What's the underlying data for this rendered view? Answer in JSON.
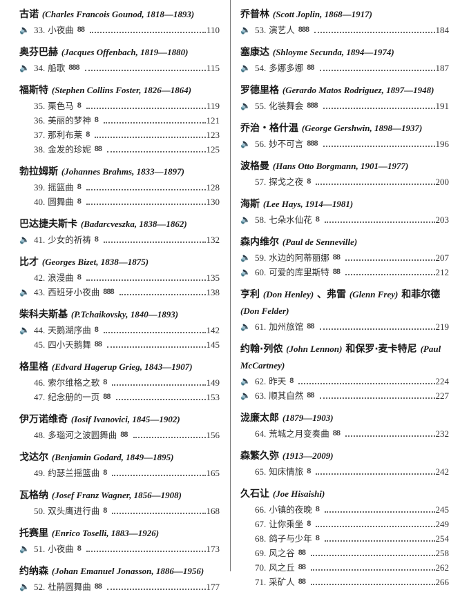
{
  "left": [
    {
      "heading_cn": "古诺",
      "heading_en": "(Charles Francois Gounod, 1818—1893)",
      "items": [
        {
          "icon": true,
          "num": "33.",
          "title": "小夜曲",
          "difficulty": 2,
          "page": "110"
        }
      ]
    },
    {
      "heading_cn": "奥芬巴赫",
      "heading_en": "(Jacques Offenbach, 1819—1880)",
      "items": [
        {
          "icon": true,
          "num": "34.",
          "title": "船歌",
          "difficulty": 3,
          "page": "115"
        }
      ]
    },
    {
      "heading_cn": "福斯特",
      "heading_en": "(Stephen Collins Foster, 1826—1864)",
      "items": [
        {
          "icon": false,
          "num": "35.",
          "title": "栗色马",
          "difficulty": 1,
          "page": "119"
        },
        {
          "icon": false,
          "num": "36.",
          "title": "美丽的梦神",
          "difficulty": 1,
          "page": "121"
        },
        {
          "icon": false,
          "num": "37.",
          "title": "那利布莱",
          "difficulty": 1,
          "page": "123"
        },
        {
          "icon": false,
          "num": "38.",
          "title": "金发的珍妮",
          "difficulty": 2,
          "page": "125"
        }
      ]
    },
    {
      "heading_cn": "勃拉姆斯",
      "heading_en": "(Johannes  Brahms, 1833—1897)",
      "items": [
        {
          "icon": false,
          "num": "39.",
          "title": "摇篮曲",
          "difficulty": 1,
          "page": "128"
        },
        {
          "icon": false,
          "num": "40.",
          "title": "圆舞曲",
          "difficulty": 1,
          "page": "130"
        }
      ]
    },
    {
      "heading_cn": "巴达捷夫斯卡",
      "heading_en": "(Badarcveszka, 1838—1862)",
      "items": [
        {
          "icon": true,
          "num": "41.",
          "title": "少女的祈祷",
          "difficulty": 1,
          "page": "132"
        }
      ]
    },
    {
      "heading_cn": "比才",
      "heading_en": "(Georges Bizet, 1838—1875)",
      "items": [
        {
          "icon": false,
          "num": "42.",
          "title": "浪漫曲",
          "difficulty": 1,
          "page": "135"
        },
        {
          "icon": true,
          "num": "43.",
          "title": "西班牙小夜曲",
          "difficulty": 3,
          "page": "138"
        }
      ]
    },
    {
      "heading_cn": "柴科夫斯基",
      "heading_en": "(P.Tchaikovsky, 1840—1893)",
      "items": [
        {
          "icon": true,
          "num": "44.",
          "title": "天鹅湖序曲",
          "difficulty": 1,
          "page": "142"
        },
        {
          "icon": false,
          "num": "45.",
          "title": "四小天鹅舞",
          "difficulty": 2,
          "page": "145"
        }
      ]
    },
    {
      "heading_cn": "格里格",
      "heading_en": "(Edvard Hagerup Grieg, 1843—1907)",
      "items": [
        {
          "icon": false,
          "num": "46.",
          "title": "索尔维格之歌",
          "difficulty": 1,
          "page": "149"
        },
        {
          "icon": false,
          "num": "47.",
          "title": "纪念册的一页",
          "difficulty": 2,
          "page": "153"
        }
      ]
    },
    {
      "heading_cn": "伊万诺维奇",
      "heading_en": "(Iosif Ivanovici, 1845—1902)",
      "items": [
        {
          "icon": false,
          "num": "48.",
          "title": "多瑙河之波圆舞曲",
          "difficulty": 2,
          "page": "156"
        }
      ]
    },
    {
      "heading_cn": "戈达尔",
      "heading_en": "(Benjamin Godard, 1849—1895)",
      "items": [
        {
          "icon": false,
          "num": "49.",
          "title": "约瑟兰摇篮曲",
          "difficulty": 1,
          "page": "165"
        }
      ]
    },
    {
      "heading_cn": "瓦格纳",
      "heading_en": "(Josef Franz Wagner, 1856—1908)",
      "items": [
        {
          "icon": false,
          "num": "50.",
          "title": "双头鹰进行曲",
          "difficulty": 1,
          "page": "168"
        }
      ]
    },
    {
      "heading_cn": "托赛里",
      "heading_en": "(Enrico Toselli, 1883—1926)",
      "items": [
        {
          "icon": true,
          "num": "51.",
          "title": "小夜曲",
          "difficulty": 1,
          "page": "173"
        }
      ]
    },
    {
      "heading_cn": "约纳森",
      "heading_en": "(Johan Emanuel Jonasson, 1886—1956)",
      "items": [
        {
          "icon": true,
          "num": "52.",
          "title": "杜鹃圆舞曲",
          "difficulty": 2,
          "page": "177"
        }
      ]
    }
  ],
  "right": [
    {
      "heading_cn": "乔普林",
      "heading_en": "(Scott Joplin, 1868—1917)",
      "items": [
        {
          "icon": true,
          "num": "53.",
          "title": "演艺人",
          "difficulty": 3,
          "page": "184"
        }
      ]
    },
    {
      "heading_cn": "塞康达",
      "heading_en": "(Shloyme Secunda, 1894—1974)",
      "items": [
        {
          "icon": true,
          "num": "54.",
          "title": "多娜多娜",
          "difficulty": 2,
          "page": "187"
        }
      ]
    },
    {
      "heading_cn": "罗德里格",
      "heading_en": "(Gerardo Matos Rodriguez, 1897—1948)",
      "items": [
        {
          "icon": true,
          "num": "55.",
          "title": "化装舞会",
          "difficulty": 3,
          "page": "191"
        }
      ]
    },
    {
      "heading_cn": "乔治・格什温",
      "heading_en": "(George Gershwin, 1898—1937)",
      "items": [
        {
          "icon": true,
          "num": "56.",
          "title": "妙不可言",
          "difficulty": 3,
          "page": "196"
        }
      ]
    },
    {
      "heading_cn": "波格曼",
      "heading_en": "(Hans Otto Borgmann, 1901—1977)",
      "items": [
        {
          "icon": false,
          "num": "57.",
          "title": "探戈之夜",
          "difficulty": 1,
          "page": "200"
        }
      ]
    },
    {
      "heading_cn": "海斯",
      "heading_en": "(Lee Hays, 1914—1981)",
      "items": [
        {
          "icon": true,
          "num": "58.",
          "title": "七朵水仙花",
          "difficulty": 1,
          "page": "203"
        }
      ]
    },
    {
      "heading_cn": "森内维尔",
      "heading_en": "(Paul de Senneville)",
      "items": [
        {
          "icon": true,
          "num": "59.",
          "title": "水边的阿蒂丽娜",
          "difficulty": 2,
          "page": "207"
        },
        {
          "icon": true,
          "num": "60.",
          "title": "可爱的库里斯特",
          "difficulty": 2,
          "page": "212"
        }
      ]
    },
    {
      "heading_cn": "亨利",
      "heading_en": "(Don Henley)",
      "heading_cn2": "、弗雷",
      "heading_en2": "(Glenn Frey)",
      "heading_cn3": "和菲尔德",
      "heading_en3": "(Don Felder)",
      "items": [
        {
          "icon": true,
          "num": "61.",
          "title": "加州旅馆",
          "difficulty": 2,
          "page": "219"
        }
      ]
    },
    {
      "heading_cn": "约翰·列侬",
      "heading_en": "(John Lennon)",
      "heading_cn2": "和保罗·麦卡特尼",
      "heading_en2": "(Paul McCartney)",
      "items": [
        {
          "icon": true,
          "num": "62.",
          "title": "昨天",
          "difficulty": 1,
          "page": "224"
        },
        {
          "icon": true,
          "num": "63.",
          "title": "顺其自然",
          "difficulty": 2,
          "page": "227"
        }
      ]
    },
    {
      "heading_cn": "泷廉太郎",
      "heading_en": "(1879—1903)",
      "items": [
        {
          "icon": false,
          "num": "64.",
          "title": "荒城之月变奏曲",
          "difficulty": 2,
          "page": "232"
        }
      ]
    },
    {
      "heading_cn": "森繁久弥",
      "heading_en": "(1913—2009)",
      "items": [
        {
          "icon": false,
          "num": "65.",
          "title": "知床情旅",
          "difficulty": 1,
          "page": "242"
        }
      ]
    },
    {
      "heading_cn": "久石让",
      "heading_en": "(Joe Hisaishi)",
      "items": [
        {
          "icon": false,
          "num": "66.",
          "title": "小镇的夜晚",
          "difficulty": 1,
          "page": "245"
        },
        {
          "icon": false,
          "num": "67.",
          "title": "让你乘坐",
          "difficulty": 1,
          "page": "249"
        },
        {
          "icon": false,
          "num": "68.",
          "title": "鸽子与少年",
          "difficulty": 1,
          "page": "254"
        },
        {
          "icon": false,
          "num": "69.",
          "title": "风之谷",
          "difficulty": 2,
          "page": "258"
        },
        {
          "icon": false,
          "num": "70.",
          "title": "风之丘",
          "difficulty": 2,
          "page": "262"
        },
        {
          "icon": false,
          "num": "71.",
          "title": "采矿人",
          "difficulty": 2,
          "page": "266"
        }
      ]
    }
  ],
  "icons": {
    "audio": "speaker-icon",
    "difficulty": "difficulty-mark-icon"
  }
}
